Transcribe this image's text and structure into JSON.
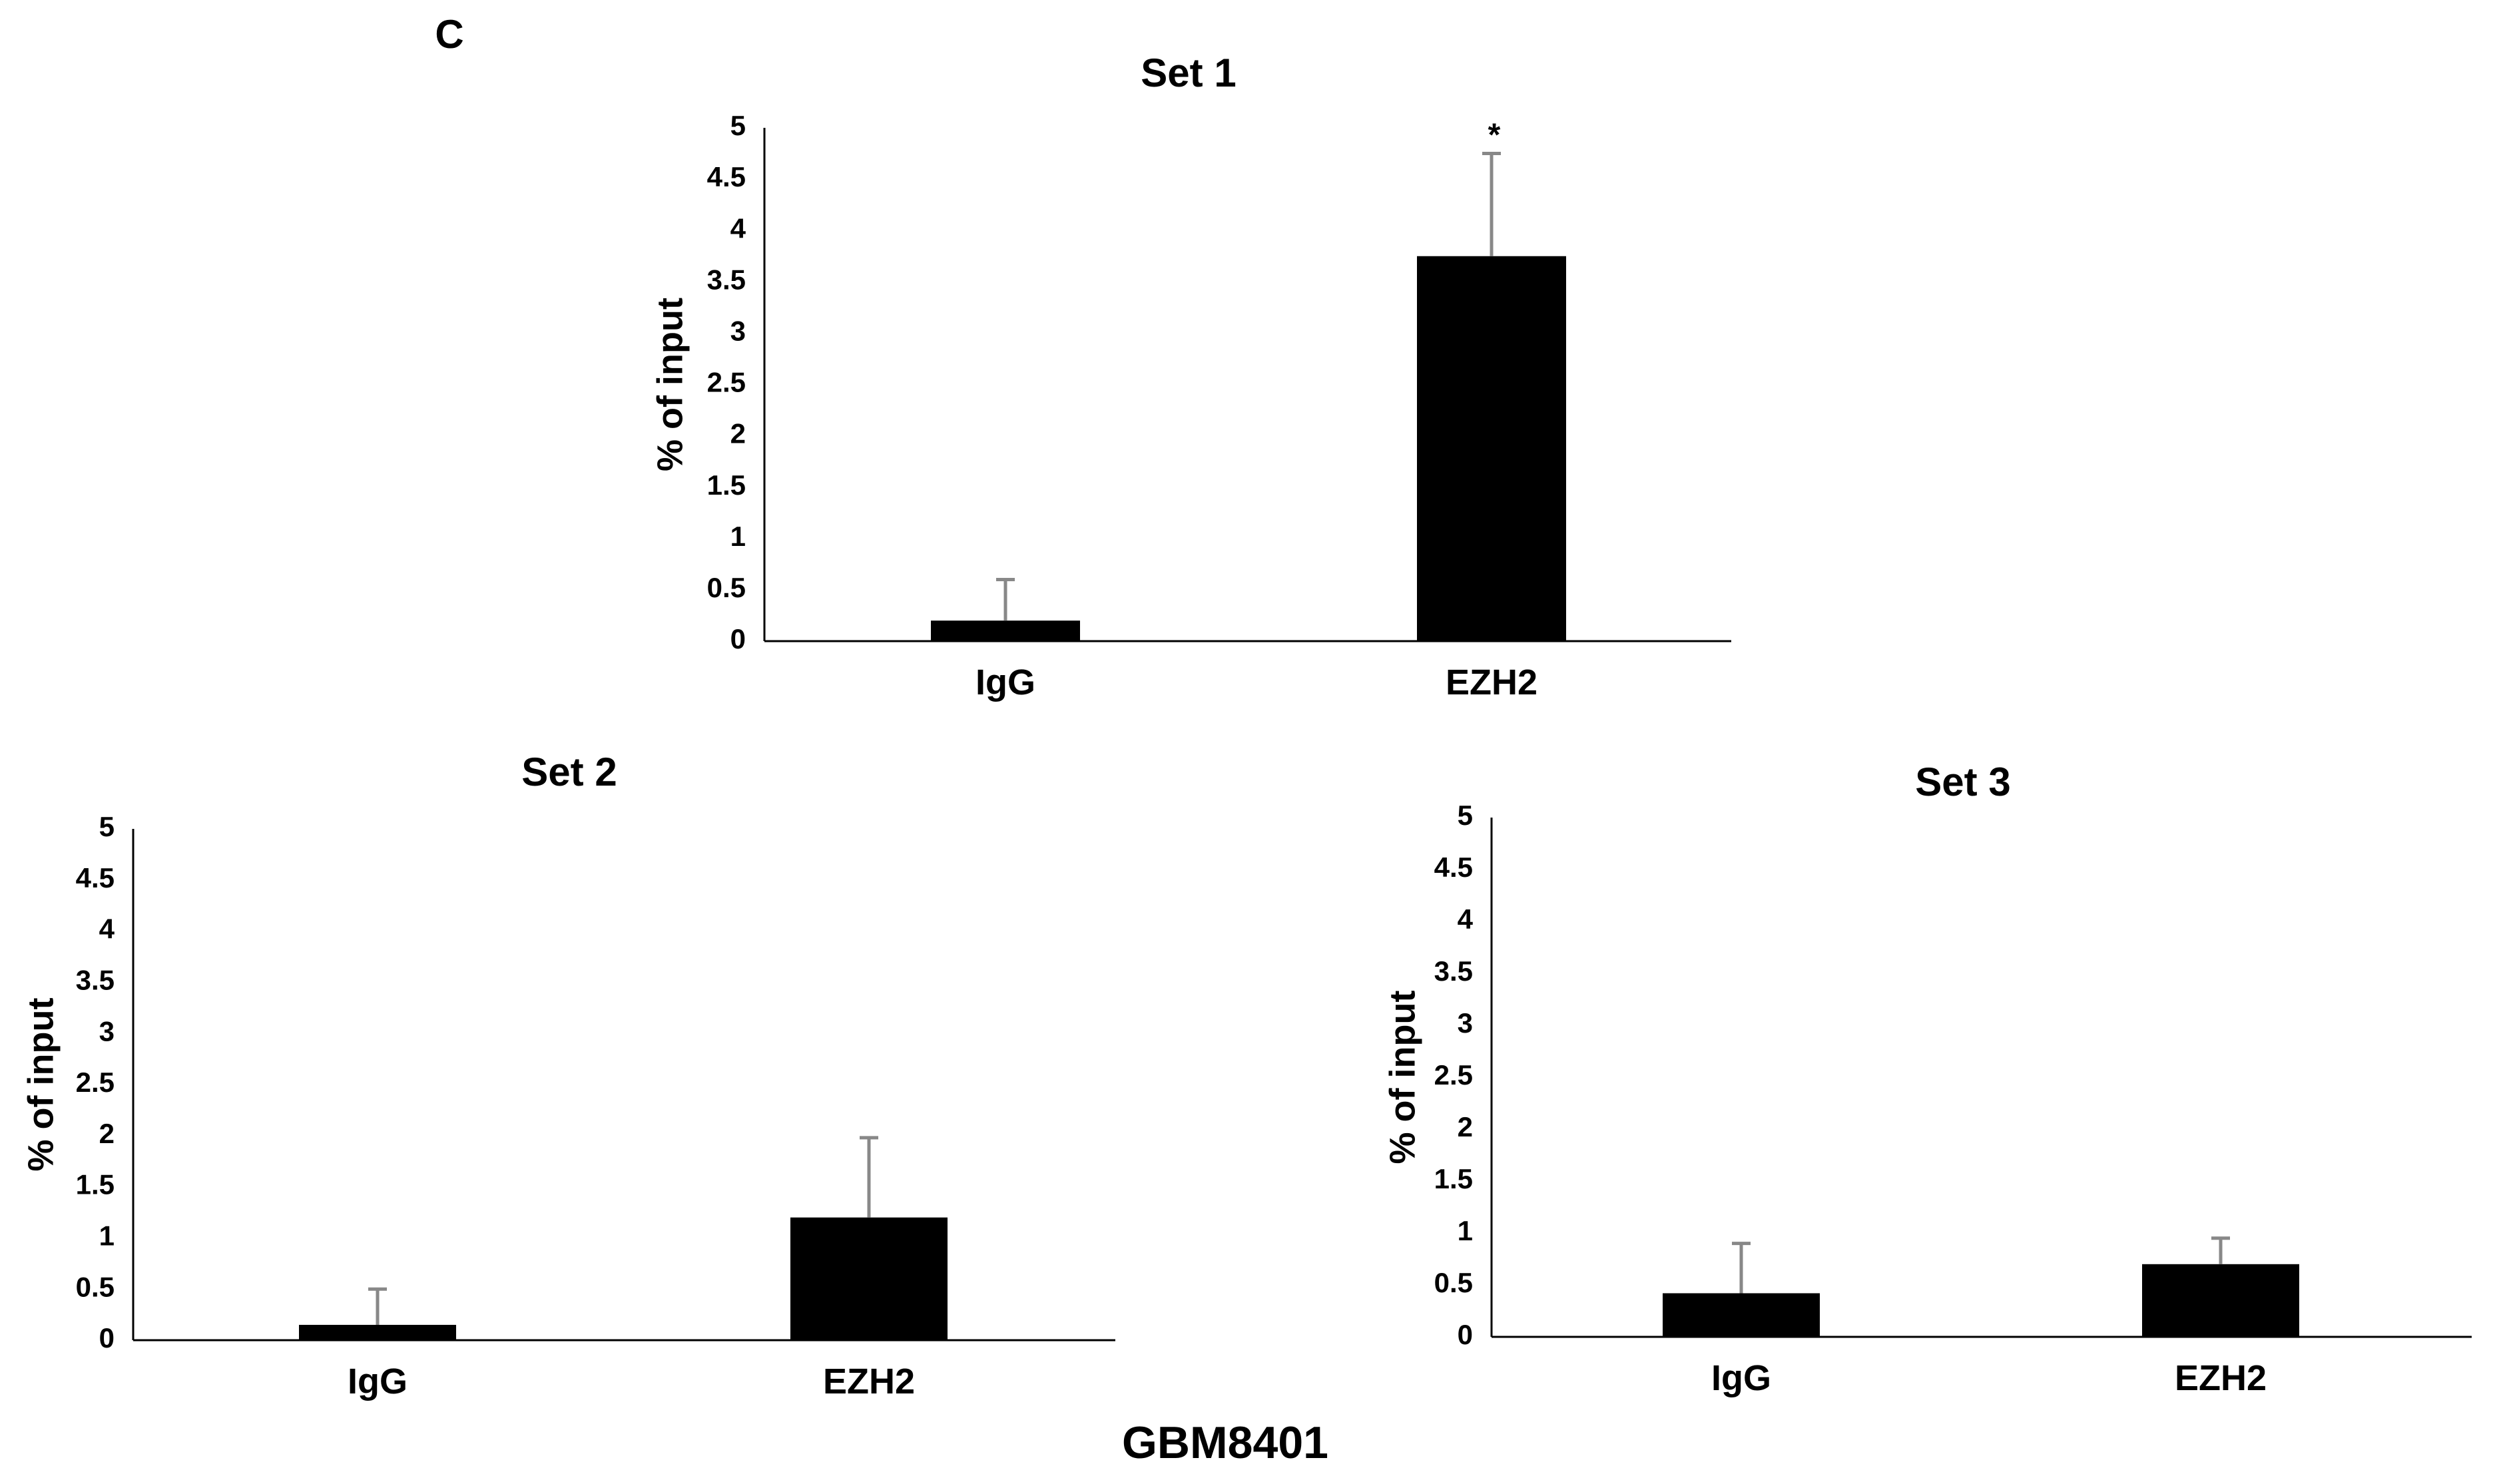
{
  "panel_label": "C",
  "footer_label": "GBM8401",
  "colors": {
    "bar": "#000000",
    "axis": "#000000",
    "error_bar": "#888888",
    "background": "#ffffff"
  },
  "chart_data": [
    {
      "type": "bar",
      "title": "Set 1",
      "xlabel": "",
      "ylabel": "% of input",
      "categories": [
        "IgG",
        "EZH2"
      ],
      "values": [
        0.2,
        3.75
      ],
      "error": [
        0.4,
        1.0
      ],
      "annotations": [
        "",
        "*"
      ],
      "ylim": [
        0,
        5
      ],
      "yticks": [
        "0",
        "0.5",
        "1",
        "1.5",
        "2",
        "2.5",
        "3",
        "3.5",
        "4",
        "4.5",
        "5"
      ],
      "grid": false,
      "legend": "none"
    },
    {
      "type": "bar",
      "title": "Set 2",
      "xlabel": "",
      "ylabel": "% of input",
      "categories": [
        "IgG",
        "EZH2"
      ],
      "values": [
        0.15,
        1.2
      ],
      "error": [
        0.35,
        0.78
      ],
      "annotations": [
        "",
        ""
      ],
      "ylim": [
        0,
        5
      ],
      "yticks": [
        "0",
        "0.5",
        "1",
        "1.5",
        "2",
        "2.5",
        "3",
        "3.5",
        "4",
        "4.5",
        "5"
      ],
      "grid": false,
      "legend": "none"
    },
    {
      "type": "bar",
      "title": "Set 3",
      "xlabel": "",
      "ylabel": "% of input",
      "categories": [
        "IgG",
        "EZH2"
      ],
      "values": [
        0.42,
        0.7
      ],
      "error": [
        0.48,
        0.25
      ],
      "annotations": [
        "",
        ""
      ],
      "ylim": [
        0,
        5
      ],
      "yticks": [
        "0",
        "0.5",
        "1",
        "1.5",
        "2",
        "2.5",
        "3",
        "3.5",
        "4",
        "4.5",
        "5"
      ],
      "grid": false,
      "legend": "none"
    }
  ]
}
